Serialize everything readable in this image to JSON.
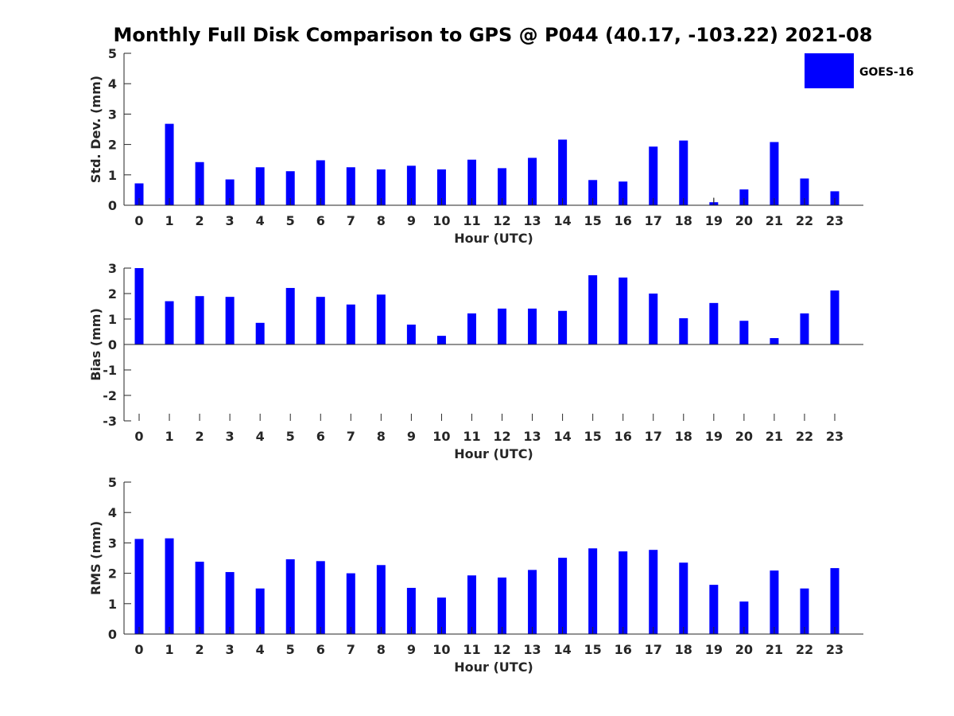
{
  "title": "Monthly Full Disk Comparison to GPS @ P044 (40.17, -103.22) 2021-08",
  "colors": {
    "bar": "#0000ff",
    "axis": "#262626"
  },
  "legend": {
    "label": "GOES-16",
    "placement": "top-right"
  },
  "chart_data": [
    {
      "type": "bar",
      "name": "std",
      "categories": [
        "0",
        "1",
        "2",
        "3",
        "4",
        "5",
        "6",
        "7",
        "8",
        "9",
        "10",
        "11",
        "12",
        "13",
        "14",
        "15",
        "16",
        "17",
        "18",
        "19",
        "20",
        "21",
        "22",
        "23"
      ],
      "series": [
        {
          "name": "GOES-16",
          "values": [
            0.72,
            2.68,
            1.42,
            0.85,
            1.25,
            1.12,
            1.48,
            1.25,
            1.18,
            1.3,
            1.18,
            1.5,
            1.22,
            1.56,
            2.16,
            0.83,
            0.78,
            1.93,
            2.13,
            0.1,
            0.52,
            2.08,
            0.88,
            0.46
          ]
        }
      ],
      "xlabel": "Hour (UTC)",
      "ylabel": "Std. Dev. (mm)",
      "ylim": [
        0,
        5
      ],
      "yticks": [
        "0",
        "1",
        "2",
        "3",
        "4",
        "5"
      ]
    },
    {
      "type": "bar",
      "name": "bias",
      "categories": [
        "0",
        "1",
        "2",
        "3",
        "4",
        "5",
        "6",
        "7",
        "8",
        "9",
        "10",
        "11",
        "12",
        "13",
        "14",
        "15",
        "16",
        "17",
        "18",
        "19",
        "20",
        "21",
        "22",
        "23"
      ],
      "series": [
        {
          "name": "GOES-16",
          "values": [
            3.0,
            1.7,
            1.9,
            1.87,
            0.85,
            2.22,
            1.87,
            1.57,
            1.96,
            0.78,
            0.34,
            1.22,
            1.41,
            1.41,
            1.32,
            2.72,
            2.63,
            2.0,
            1.03,
            1.63,
            0.93,
            0.25,
            1.22,
            2.12
          ]
        }
      ],
      "xlabel": "Hour (UTC)",
      "ylabel": "Bias (mm)",
      "ylim": [
        -3,
        3
      ],
      "yticks": [
        "-3",
        "-2",
        "-1",
        "0",
        "1",
        "2",
        "3"
      ]
    },
    {
      "type": "bar",
      "name": "rms",
      "categories": [
        "0",
        "1",
        "2",
        "3",
        "4",
        "5",
        "6",
        "7",
        "8",
        "9",
        "10",
        "11",
        "12",
        "13",
        "14",
        "15",
        "16",
        "17",
        "18",
        "19",
        "20",
        "21",
        "22",
        "23"
      ],
      "series": [
        {
          "name": "GOES-16",
          "values": [
            3.13,
            3.15,
            2.38,
            2.04,
            1.5,
            2.46,
            2.4,
            2.0,
            2.27,
            1.52,
            1.2,
            1.93,
            1.86,
            2.11,
            2.51,
            2.82,
            2.72,
            2.77,
            2.35,
            1.62,
            1.07,
            2.09,
            1.5,
            2.17
          ]
        }
      ],
      "xlabel": "Hour (UTC)",
      "ylabel": "RMS (mm)",
      "ylim": [
        0,
        5
      ],
      "yticks": [
        "0",
        "1",
        "2",
        "3",
        "4",
        "5"
      ]
    }
  ]
}
